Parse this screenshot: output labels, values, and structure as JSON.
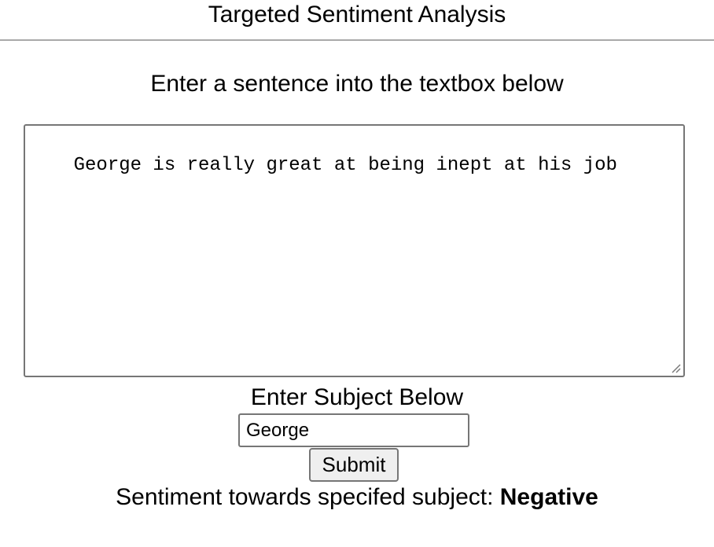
{
  "header": {
    "title": "Targeted Sentiment Analysis"
  },
  "main": {
    "prompt": "Enter a sentence into the textbox below",
    "sentence_value": "George is really great at being inept at his job",
    "subject_label": "Enter Subject Below",
    "subject_value": "George",
    "submit_label": "Submit",
    "result_prefix": "Sentiment towards specifed subject:",
    "result_value": "Negative"
  },
  "icons": {
    "resize_grip": "resize-grip-icon"
  },
  "colors": {
    "border": "#767676",
    "header_rule": "#a9a9a9",
    "button_bg": "#efefef"
  }
}
